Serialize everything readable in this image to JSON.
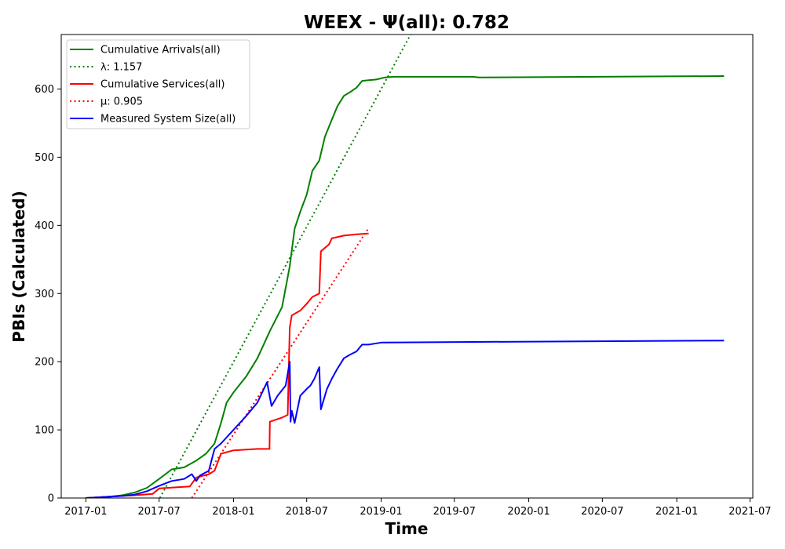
{
  "chart_data": {
    "type": "line",
    "title": "WEEX -  Ψ(all): 0.782",
    "xlabel": "Time",
    "ylabel": "PBIs (Calculated)",
    "xlim": [
      "2016-11-01",
      "2021-07-08"
    ],
    "ylim": [
      0,
      680
    ],
    "grid": false,
    "legend_position": "top-left",
    "x_ticks": [
      "2017-01",
      "2017-07",
      "2018-01",
      "2018-07",
      "2019-01",
      "2019-07",
      "2020-01",
      "2020-07",
      "2021-01",
      "2021-07"
    ],
    "y_ticks": [
      0,
      100,
      200,
      300,
      400,
      500,
      600
    ],
    "series": [
      {
        "name": "Cumulative Arrivals(all)",
        "style": "solid",
        "color": "#008000",
        "x": [
          "2017-01-01",
          "2017-02-01",
          "2017-03-01",
          "2017-04-01",
          "2017-05-01",
          "2017-06-01",
          "2017-07-01",
          "2017-08-01",
          "2017-09-01",
          "2017-10-01",
          "2017-10-25",
          "2017-11-15",
          "2017-12-01",
          "2017-12-15",
          "2018-01-01",
          "2018-02-01",
          "2018-03-01",
          "2018-04-01",
          "2018-05-01",
          "2018-05-20",
          "2018-06-01",
          "2018-06-15",
          "2018-07-01",
          "2018-07-15",
          "2018-08-01",
          "2018-08-15",
          "2018-09-01",
          "2018-09-15",
          "2018-10-01",
          "2018-10-15",
          "2018-11-01",
          "2018-11-15",
          "2018-12-01",
          "2018-12-20",
          "2019-01-10",
          "2019-02-01",
          "2019-08-15",
          "2019-09-01",
          "2021-04-28"
        ],
        "y": [
          0,
          1,
          2,
          4,
          8,
          15,
          28,
          42,
          45,
          55,
          65,
          80,
          110,
          140,
          155,
          178,
          205,
          245,
          280,
          340,
          395,
          420,
          445,
          480,
          495,
          530,
          555,
          575,
          590,
          595,
          602,
          612,
          613,
          614,
          617,
          618,
          618,
          617,
          619
        ]
      },
      {
        "name": "λ: 1.157",
        "style": "dotted",
        "color": "#008000",
        "x": [
          "2017-07-03",
          "2019-03-15"
        ],
        "y": [
          0,
          680
        ]
      },
      {
        "name": "Cumulative Services(all)",
        "style": "solid",
        "color": "#ff0000",
        "x": [
          "2017-01-01",
          "2017-03-01",
          "2017-05-01",
          "2017-06-15",
          "2017-07-01",
          "2017-09-15",
          "2017-10-01",
          "2017-11-01",
          "2017-11-15",
          "2017-12-01",
          "2018-01-01",
          "2018-03-01",
          "2018-03-31",
          "2018-04-01",
          "2018-05-01",
          "2018-05-15",
          "2018-05-20",
          "2018-05-25",
          "2018-06-15",
          "2018-07-01",
          "2018-07-15",
          "2018-08-01",
          "2018-08-05",
          "2018-08-25",
          "2018-09-01",
          "2018-10-01",
          "2018-11-01",
          "2018-12-01"
        ],
        "y": [
          0,
          2,
          4,
          6,
          14,
          17,
          30,
          35,
          40,
          65,
          70,
          72,
          72,
          112,
          118,
          122,
          250,
          268,
          275,
          285,
          295,
          300,
          362,
          372,
          381,
          385,
          387,
          388
        ]
      },
      {
        "name": "μ: 0.905",
        "style": "dotted",
        "color": "#ff0000",
        "x": [
          "2017-09-20",
          "2018-12-01"
        ],
        "y": [
          0,
          396
        ]
      },
      {
        "name": "Measured System Size(all)",
        "style": "solid",
        "color": "#0000ff",
        "x": [
          "2017-01-01",
          "2017-03-01",
          "2017-04-01",
          "2017-05-01",
          "2017-06-01",
          "2017-07-01",
          "2017-08-01",
          "2017-09-01",
          "2017-09-20",
          "2017-10-01",
          "2017-10-10",
          "2017-11-01",
          "2017-11-15",
          "2017-12-01",
          "2018-01-01",
          "2018-02-01",
          "2018-03-01",
          "2018-03-25",
          "2018-04-05",
          "2018-04-20",
          "2018-05-10",
          "2018-05-20",
          "2018-05-22",
          "2018-05-25",
          "2018-06-01",
          "2018-06-15",
          "2018-07-01",
          "2018-07-10",
          "2018-07-20",
          "2018-08-01",
          "2018-08-05",
          "2018-08-10",
          "2018-08-20",
          "2018-09-01",
          "2018-09-15",
          "2018-10-01",
          "2018-10-15",
          "2018-11-01",
          "2018-11-15",
          "2018-12-01",
          "2019-01-01",
          "2019-08-15",
          "2021-04-28"
        ],
        "y": [
          0,
          2,
          3,
          5,
          10,
          18,
          25,
          28,
          35,
          25,
          33,
          40,
          72,
          80,
          100,
          120,
          140,
          170,
          135,
          150,
          165,
          200,
          112,
          128,
          110,
          150,
          160,
          165,
          175,
          192,
          130,
          140,
          160,
          175,
          190,
          205,
          210,
          215,
          225,
          225,
          228,
          229,
          231
        ]
      }
    ]
  }
}
